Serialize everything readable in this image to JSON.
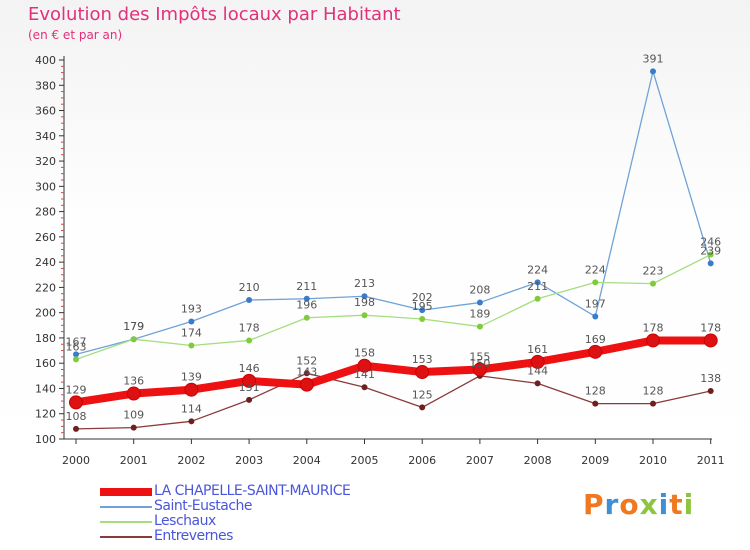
{
  "title": "Evolution des Impôts locaux par Habitant",
  "subtitle": "(en € et par an)",
  "brand": {
    "text": "Proxiti",
    "colors": [
      "#f07820",
      "#3d8fd6",
      "#f07820",
      "#8cc63f",
      "#3d8fd6",
      "#f07820",
      "#8cc63f"
    ]
  },
  "chart_data": {
    "type": "line",
    "x": [
      "2000",
      "2001",
      "2002",
      "2003",
      "2004",
      "2005",
      "2006",
      "2007",
      "2008",
      "2009",
      "2010",
      "2011"
    ],
    "ylim": [
      100,
      400
    ],
    "yticks": [
      100,
      120,
      140,
      160,
      180,
      200,
      220,
      240,
      260,
      280,
      300,
      320,
      340,
      360,
      380,
      400
    ],
    "grid": false,
    "legend_position": "bottom-left",
    "series": [
      {
        "name": "LA CHAPELLE-SAINT-MAURICE",
        "color": "#ee1111",
        "marker_color": "#dd1111",
        "emphasis": true,
        "values": [
          129,
          136,
          139,
          146,
          143,
          158,
          153,
          155,
          161,
          169,
          178,
          178
        ]
      },
      {
        "name": "Saint-Eustache",
        "color": "#6fa3d8",
        "marker_color": "#3a7cc8",
        "emphasis": false,
        "values": [
          167,
          179,
          193,
          210,
          211,
          213,
          202,
          208,
          224,
          197,
          391,
          239
        ]
      },
      {
        "name": "Leschaux",
        "color": "#a6dd80",
        "marker_color": "#7fcc3a",
        "emphasis": false,
        "values": [
          163,
          179,
          174,
          178,
          196,
          198,
          195,
          189,
          211,
          224,
          223,
          246
        ]
      },
      {
        "name": "Entrevernes",
        "color": "#8a3a3a",
        "marker_color": "#6e1f1f",
        "emphasis": false,
        "values": [
          108,
          109,
          114,
          131,
          152,
          141,
          125,
          150,
          144,
          128,
          128,
          138
        ]
      }
    ]
  }
}
